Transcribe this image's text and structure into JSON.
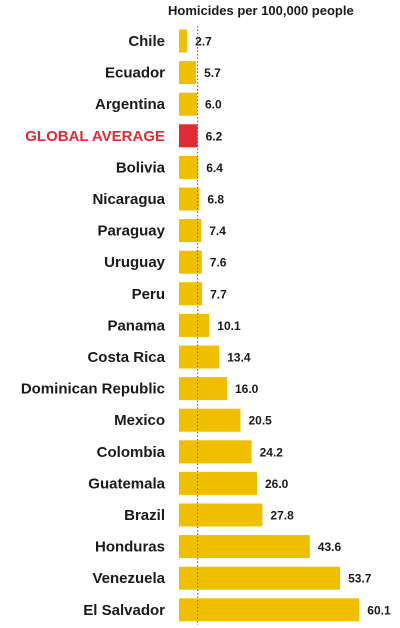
{
  "chart_data": {
    "type": "bar",
    "orientation": "horizontal",
    "title": "Homicides per 100,000 people",
    "categories": [
      "Chile",
      "Ecuador",
      "Argentina",
      "GLOBAL AVERAGE",
      "Bolivia",
      "Nicaragua",
      "Paraguay",
      "Uruguay",
      "Peru",
      "Panama",
      "Costa Rica",
      "Dominican Republic",
      "Mexico",
      "Colombia",
      "Guatemala",
      "Brazil",
      "Honduras",
      "Venezuela",
      "El Salvador"
    ],
    "values": [
      2.7,
      5.7,
      6.0,
      6.2,
      6.4,
      6.8,
      7.4,
      7.6,
      7.7,
      10.1,
      13.4,
      16.0,
      20.5,
      24.2,
      26.0,
      27.8,
      43.6,
      53.7,
      60.1
    ],
    "value_labels": [
      "2.7",
      "5.7",
      "6.0",
      "6.2",
      "6.4",
      "6.8",
      "7.4",
      "7.6",
      "7.7",
      "10.1",
      "13.4",
      "16.0",
      "20.5",
      "24.2",
      "26.0",
      "27.8",
      "43.6",
      "53.7",
      "60.1"
    ],
    "highlight": "GLOBAL AVERAGE",
    "reference_line": 6.2,
    "xlim": [
      0,
      62
    ],
    "grid": false,
    "legend": "none"
  },
  "colors": {
    "bar": "#f0c000",
    "highlight": "#e02b35",
    "reference_line": "#e02b35",
    "label": "#1a1a1a",
    "highlight_label": "#e02b35"
  }
}
